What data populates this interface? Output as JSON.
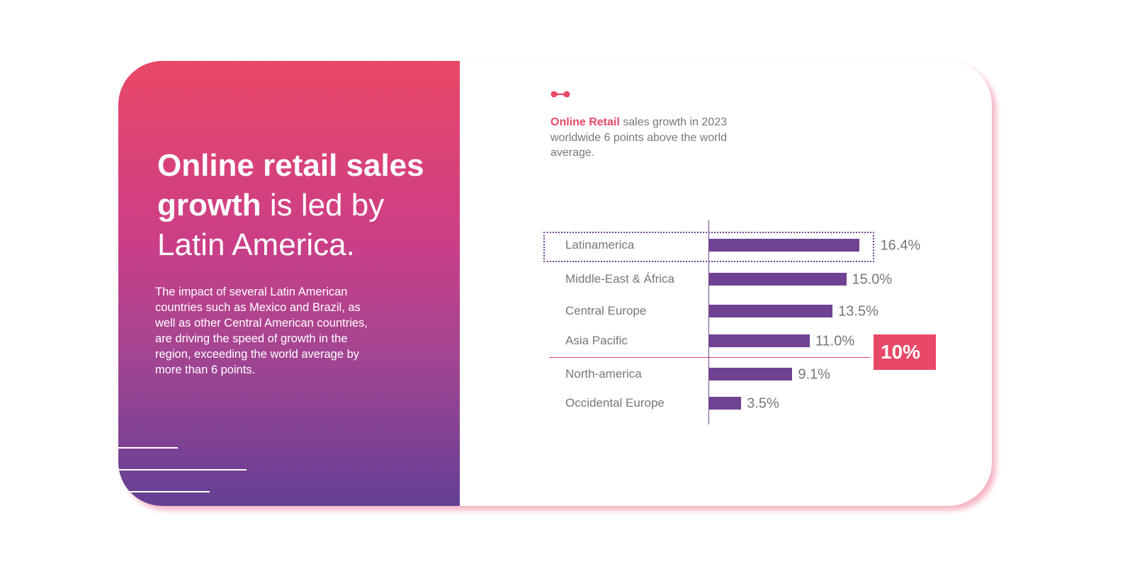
{
  "left_panel": {
    "title_bold": "Online retail sales growth",
    "title_rest": " is led by Latin America.",
    "body": "The impact of several Latin American countries such as Mexico and Brazil, as well as other Central American countries, are driving the speed of growth in the region, exceeding the world average by more than 6 points."
  },
  "subtitle": {
    "highlight": "Online Retail",
    "rest": " sales growth in 2023 worldwide 6 points above the world average."
  },
  "colors": {
    "accent": "#e94867",
    "bar": "#6f4292"
  },
  "chart_data": {
    "type": "bar",
    "orientation": "horizontal",
    "categories": [
      "Latinamerica",
      "Middle-East & África",
      "Central Europe",
      "Asia Pacific",
      "North-america",
      "Occidental Europe"
    ],
    "values": [
      16.4,
      15.0,
      13.5,
      11.0,
      9.1,
      3.5
    ],
    "value_labels": [
      "16.4%",
      "15.0%",
      "13.5%",
      "11.0%",
      "9.1%",
      "3.5%"
    ],
    "highlighted": "Latinamerica",
    "reference_line": {
      "value": 10,
      "label": "10%"
    },
    "unit": "%"
  }
}
